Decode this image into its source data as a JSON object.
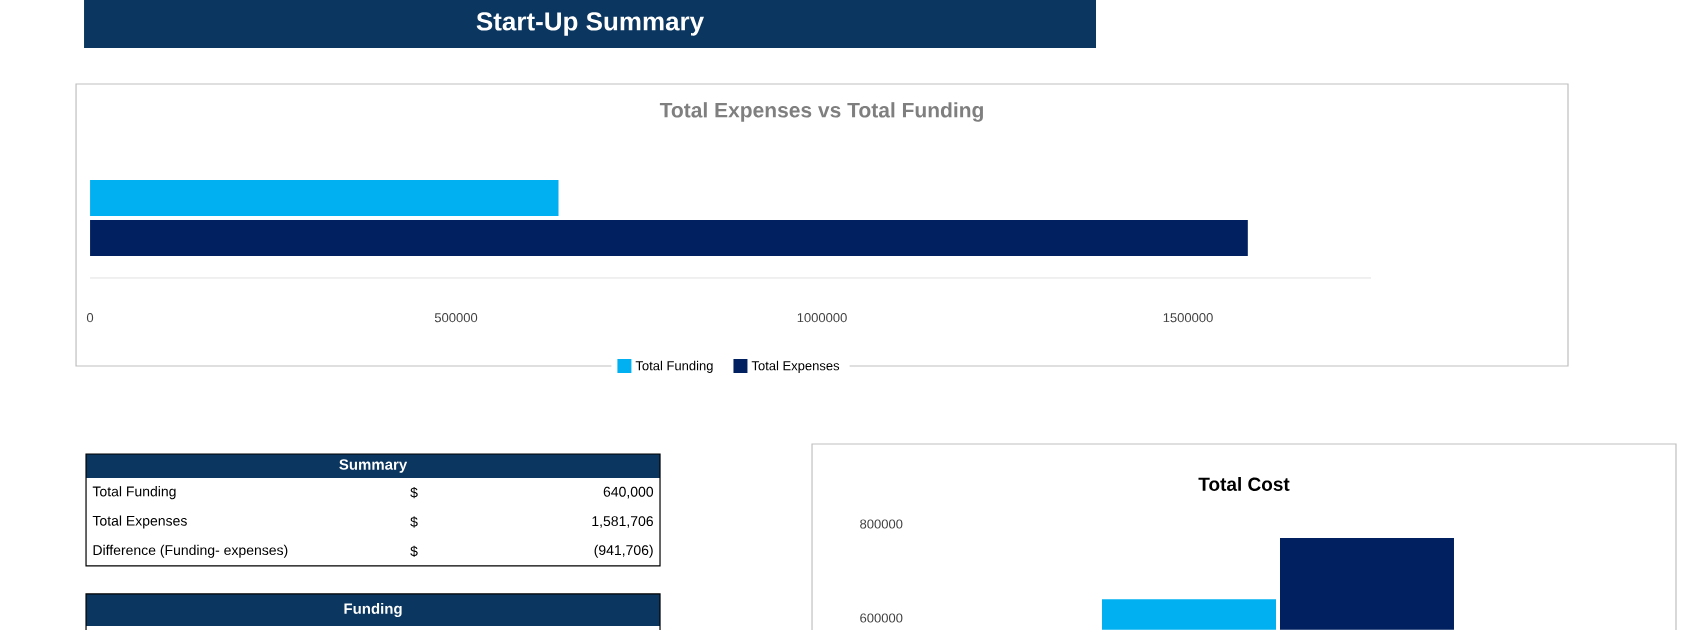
{
  "chart_data": [
    {
      "type": "other",
      "title": "Start-Up Summary"
    },
    {
      "type": "bar",
      "orientation": "horizontal",
      "title": "Total Expenses vs Total Funding",
      "categories": [
        null
      ],
      "series": [
        {
          "name": "Total Funding",
          "color": "#00b0f0",
          "values": [
            640000
          ]
        },
        {
          "name": "Total Expenses",
          "color": "#002060",
          "values": [
            1581706
          ]
        }
      ],
      "xlim": [
        0,
        1750000
      ],
      "xticks": [
        0,
        500000,
        1000000,
        1500000
      ],
      "legend": "bottom"
    },
    {
      "type": "other",
      "title": "Summary",
      "annotations": [
        "Total Funding",
        "$",
        "640,000",
        "Total Expenses",
        "$",
        "1,581,706",
        "Difference (Funding- expenses)",
        "$",
        "(941,706)"
      ]
    },
    {
      "type": "other",
      "title": "Funding"
    },
    {
      "type": "bar",
      "title": "Total Cost",
      "categories": [
        null
      ],
      "series": [
        {
          "color": "#00b0f0",
          "values": [
            640000
          ]
        },
        {
          "color": "#002060",
          "values": [
            770000
          ]
        }
      ],
      "ylim": [
        575000,
        800000
      ],
      "yticks": [
        600000,
        800000
      ]
    }
  ]
}
